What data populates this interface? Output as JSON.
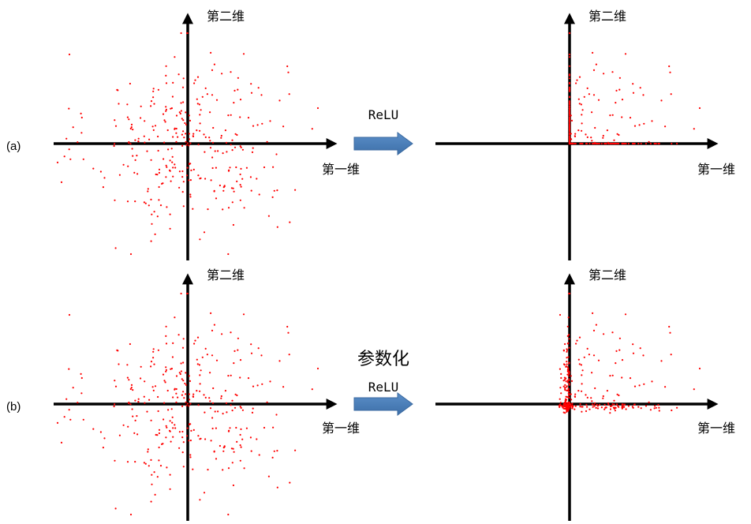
{
  "rows": [
    {
      "id": "a",
      "label": "(a)",
      "arrow_lines": [
        "ReLU"
      ]
    },
    {
      "id": "b",
      "label": "(b)",
      "arrow_lines": [
        "参数化",
        "ReLU"
      ]
    }
  ],
  "axis_labels": {
    "x": "第一维",
    "y": "第二维"
  },
  "colors": {
    "points": "#ff0000",
    "axes": "#000000",
    "arrow_fill": "#4f81bd"
  }
}
